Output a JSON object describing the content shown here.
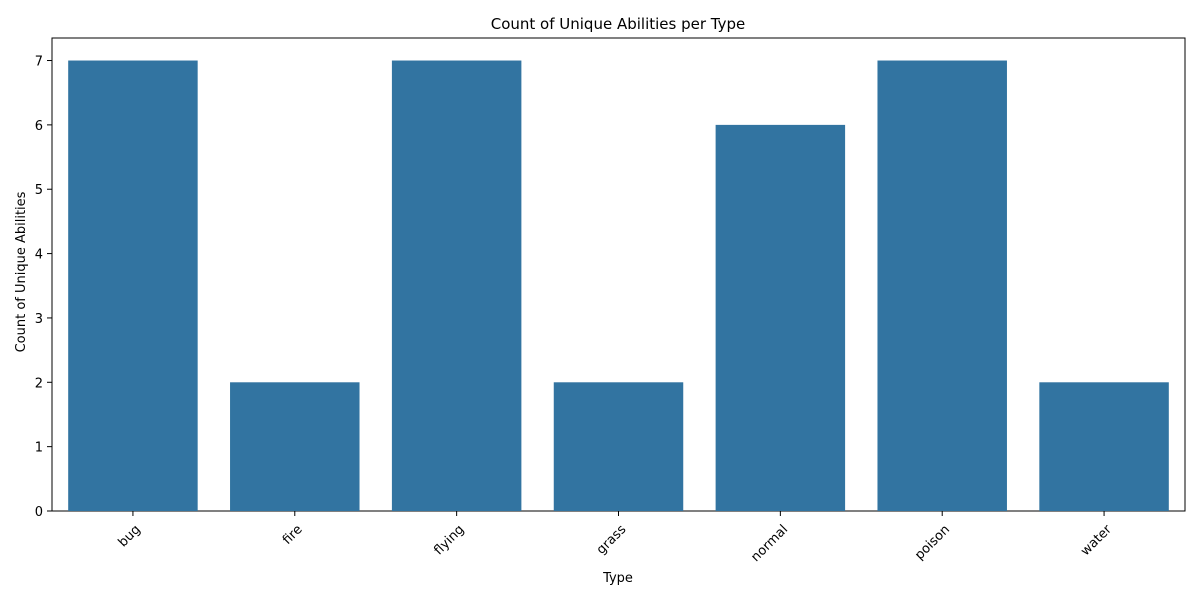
{
  "chart_data": {
    "type": "bar",
    "title": "Count of Unique Abilities per Type",
    "xlabel": "Type",
    "ylabel": "Count of Unique Abilities",
    "categories": [
      "bug",
      "fire",
      "flying",
      "grass",
      "normal",
      "poison",
      "water"
    ],
    "values": [
      7,
      2,
      7,
      2,
      6,
      7,
      2
    ],
    "ylim": [
      0,
      7.35
    ],
    "yticks": [
      0,
      1,
      2,
      3,
      4,
      5,
      6,
      7
    ],
    "bar_color": "#3274a1",
    "grid": false,
    "legend": "none"
  }
}
